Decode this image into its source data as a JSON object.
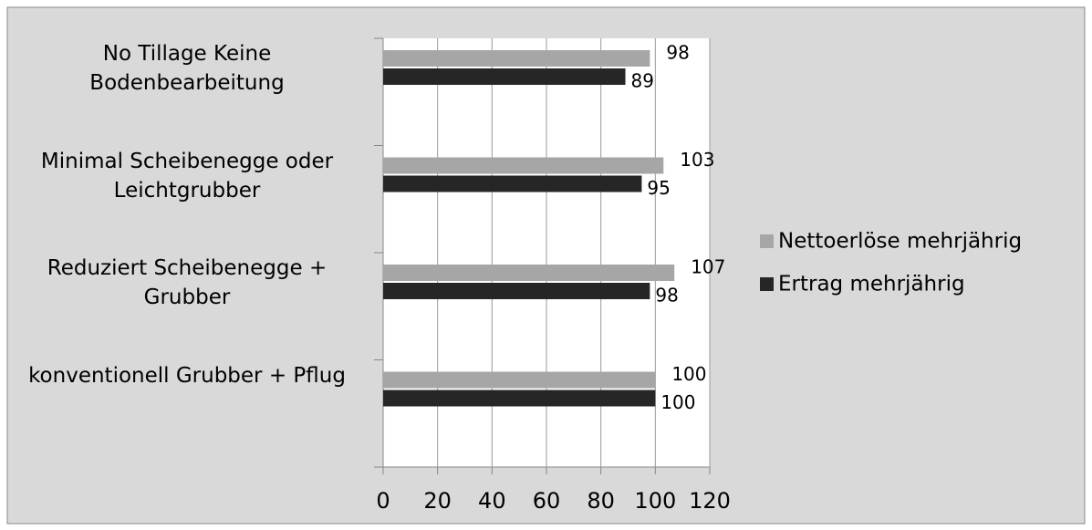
{
  "chart_data": {
    "type": "bar",
    "orientation": "horizontal",
    "categories": [
      "No Tillage Keine Bodenbearbeitung",
      "Minimal Scheibenegge oder Leichtgrubber",
      "Reduziert Scheibenegge + Grubber",
      "konventionell Grubber + Pflug"
    ],
    "series": [
      {
        "name": "Nettoerlöse mehrjährig",
        "color": "#a6a6a6",
        "values": [
          98,
          103,
          107,
          100
        ]
      },
      {
        "name": "Ertrag mehrjährig",
        "color": "#262626",
        "values": [
          89,
          95,
          98,
          100
        ]
      }
    ],
    "xlim": [
      0,
      120
    ],
    "xticks": [
      0,
      20,
      40,
      60,
      80,
      100,
      120
    ],
    "grid": true,
    "legend": "right"
  }
}
